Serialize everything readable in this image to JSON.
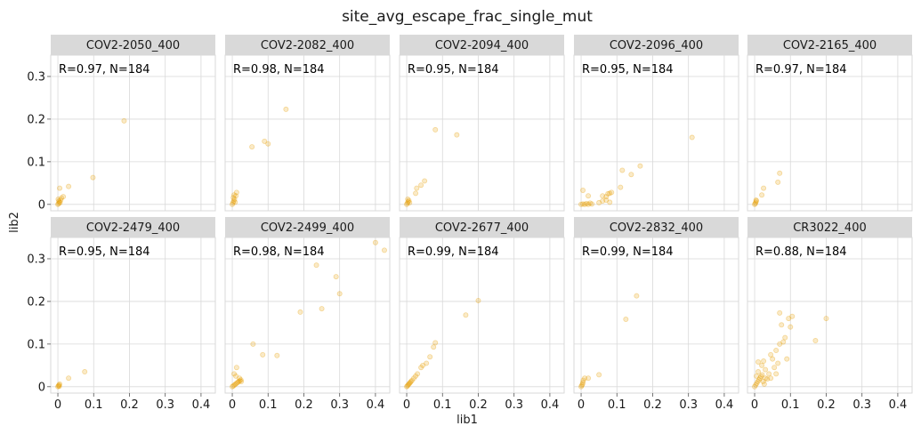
{
  "suptitle": "site_avg_escape_frac_single_mut",
  "chart_data": {
    "type": "scatter",
    "title": "site_avg_escape_frac_single_mut",
    "xlabel": "lib1",
    "ylabel": "lib2",
    "xlim": [
      -0.02,
      0.44
    ],
    "ylim": [
      -0.015,
      0.35
    ],
    "xticks": [
      0,
      0.1,
      0.2,
      0.3,
      0.4
    ],
    "yticks": [
      0,
      0.1,
      0.2,
      0.3
    ],
    "xtick_labels": [
      "0",
      "0.1",
      "0.2",
      "0.3",
      "0.4"
    ],
    "ytick_labels": [
      "0",
      "0.1",
      "0.2",
      "0.3"
    ],
    "grid": true,
    "layout": {
      "rows": 2,
      "cols": 5
    },
    "point_color": "#E69F00",
    "strip_color": "#D9D9D9",
    "grid_color": "#D9D9D9",
    "panels": [
      {
        "name": "COV2-2050_400",
        "annotation": "R=0.97, N=184",
        "points": [
          [
            0,
            0
          ],
          [
            0.002,
            0.002
          ],
          [
            0.004,
            0.005
          ],
          [
            0.003,
            0.008
          ],
          [
            0.001,
            0.012
          ],
          [
            0.006,
            0.004
          ],
          [
            0.008,
            0.01
          ],
          [
            0.01,
            0.015
          ],
          [
            0.015,
            0.018
          ],
          [
            0.005,
            0.038
          ],
          [
            0.03,
            0.042
          ],
          [
            0.098,
            0.063
          ],
          [
            0.185,
            0.196
          ]
        ]
      },
      {
        "name": "COV2-2082_400",
        "annotation": "R=0.98, N=184",
        "points": [
          [
            0,
            0
          ],
          [
            0.002,
            0.004
          ],
          [
            0.004,
            0.008
          ],
          [
            0.006,
            0.012
          ],
          [
            0.008,
            0.005
          ],
          [
            0.003,
            0.016
          ],
          [
            0.01,
            0.02
          ],
          [
            0.012,
            0.028
          ],
          [
            0.005,
            0.022
          ],
          [
            0.055,
            0.135
          ],
          [
            0.09,
            0.148
          ],
          [
            0.1,
            0.142
          ],
          [
            0.15,
            0.223
          ]
        ]
      },
      {
        "name": "COV2-2094_400",
        "annotation": "R=0.95, N=184",
        "points": [
          [
            0,
            0
          ],
          [
            0.002,
            0.003
          ],
          [
            0.004,
            0.006
          ],
          [
            0.006,
            0.009
          ],
          [
            0.003,
            0.012
          ],
          [
            0.008,
            0.004
          ],
          [
            0.025,
            0.026
          ],
          [
            0.028,
            0.038
          ],
          [
            0.04,
            0.045
          ],
          [
            0.05,
            0.055
          ],
          [
            0.08,
            0.175
          ],
          [
            0.14,
            0.163
          ]
        ]
      },
      {
        "name": "COV2-2096_400",
        "annotation": "R=0.95, N=184",
        "points": [
          [
            0,
            0
          ],
          [
            0.005,
            0.001
          ],
          [
            0.01,
            0
          ],
          [
            0.015,
            0.002
          ],
          [
            0.02,
            0
          ],
          [
            0.025,
            0.003
          ],
          [
            0.03,
            0.001
          ],
          [
            0.05,
            0.004
          ],
          [
            0.06,
            0.008
          ],
          [
            0.07,
            0.01
          ],
          [
            0.08,
            0.005
          ],
          [
            0.02,
            0.02
          ],
          [
            0.06,
            0.02
          ],
          [
            0.07,
            0.018
          ],
          [
            0.075,
            0.025
          ],
          [
            0.08,
            0.026
          ],
          [
            0.085,
            0.028
          ],
          [
            0.11,
            0.04
          ],
          [
            0.115,
            0.08
          ],
          [
            0.14,
            0.07
          ],
          [
            0.165,
            0.09
          ],
          [
            0.005,
            0.033
          ],
          [
            0.31,
            0.157
          ]
        ]
      },
      {
        "name": "COV2-2165_400",
        "annotation": "R=0.97, N=184",
        "points": [
          [
            0,
            0
          ],
          [
            0.002,
            0.002
          ],
          [
            0.003,
            0.005
          ],
          [
            0.005,
            0.008
          ],
          [
            0.004,
            0.01
          ],
          [
            0.02,
            0.022
          ],
          [
            0.025,
            0.038
          ],
          [
            0.065,
            0.052
          ],
          [
            0.07,
            0.073
          ]
        ]
      },
      {
        "name": "COV2-2479_400",
        "annotation": "R=0.95, N=184",
        "points": [
          [
            0,
            0
          ],
          [
            0.002,
            0.002
          ],
          [
            0.003,
            0.004
          ],
          [
            0.005,
            0.006
          ],
          [
            0.004,
            0.001
          ],
          [
            0.03,
            0.02
          ],
          [
            0.075,
            0.035
          ]
        ]
      },
      {
        "name": "COV2-2499_400",
        "annotation": "R=0.98, N=184",
        "points": [
          [
            0,
            0
          ],
          [
            0.003,
            0.002
          ],
          [
            0.006,
            0.004
          ],
          [
            0.009,
            0.006
          ],
          [
            0.012,
            0.008
          ],
          [
            0.015,
            0.01
          ],
          [
            0.018,
            0.012
          ],
          [
            0.021,
            0.014
          ],
          [
            0.024,
            0.016
          ],
          [
            0.01,
            0.025
          ],
          [
            0.005,
            0.03
          ],
          [
            0.012,
            0.045
          ],
          [
            0.02,
            0.02
          ],
          [
            0.025,
            0.012
          ],
          [
            0.058,
            0.1
          ],
          [
            0.085,
            0.075
          ],
          [
            0.125,
            0.073
          ],
          [
            0.19,
            0.175
          ],
          [
            0.235,
            0.285
          ],
          [
            0.25,
            0.183
          ],
          [
            0.29,
            0.258
          ],
          [
            0.3,
            0.218
          ],
          [
            0.4,
            0.338
          ],
          [
            0.425,
            0.32
          ]
        ]
      },
      {
        "name": "COV2-2677_400",
        "annotation": "R=0.99, N=184",
        "points": [
          [
            0,
            0
          ],
          [
            0.002,
            0.002
          ],
          [
            0.004,
            0.004
          ],
          [
            0.006,
            0.006
          ],
          [
            0.008,
            0.008
          ],
          [
            0.01,
            0.01
          ],
          [
            0.012,
            0.012
          ],
          [
            0.015,
            0.015
          ],
          [
            0.02,
            0.02
          ],
          [
            0.025,
            0.025
          ],
          [
            0.03,
            0.03
          ],
          [
            0.04,
            0.045
          ],
          [
            0.045,
            0.05
          ],
          [
            0.055,
            0.055
          ],
          [
            0.065,
            0.07
          ],
          [
            0.075,
            0.093
          ],
          [
            0.08,
            0.103
          ],
          [
            0.165,
            0.168
          ],
          [
            0.2,
            0.202
          ]
        ]
      },
      {
        "name": "COV2-2832_400",
        "annotation": "R=0.99, N=184",
        "points": [
          [
            0,
            0
          ],
          [
            0.002,
            0.003
          ],
          [
            0.004,
            0.006
          ],
          [
            0.005,
            0.01
          ],
          [
            0.006,
            0.015
          ],
          [
            0.01,
            0.02
          ],
          [
            0.02,
            0.02
          ],
          [
            0.05,
            0.028
          ],
          [
            0.125,
            0.158
          ],
          [
            0.155,
            0.213
          ]
        ]
      },
      {
        "name": "CR3022_400",
        "annotation": "R=0.88, N=184",
        "points": [
          [
            0,
            0
          ],
          [
            0.003,
            0.004
          ],
          [
            0.006,
            0.008
          ],
          [
            0.009,
            0.012
          ],
          [
            0.012,
            0.016
          ],
          [
            0.015,
            0.02
          ],
          [
            0.018,
            0.024
          ],
          [
            0.021,
            0.028
          ],
          [
            0.024,
            0.012
          ],
          [
            0.027,
            0.006
          ],
          [
            0.03,
            0.02
          ],
          [
            0.005,
            0.025
          ],
          [
            0.01,
            0.035
          ],
          [
            0.02,
            0.05
          ],
          [
            0.025,
            0.06
          ],
          [
            0.03,
            0.04
          ],
          [
            0.035,
            0.018
          ],
          [
            0.04,
            0.03
          ],
          [
            0.045,
            0.075
          ],
          [
            0.05,
            0.065
          ],
          [
            0.055,
            0.045
          ],
          [
            0.06,
            0.085
          ],
          [
            0.065,
            0.055
          ],
          [
            0.07,
            0.1
          ],
          [
            0.07,
            0.173
          ],
          [
            0.075,
            0.145
          ],
          [
            0.08,
            0.105
          ],
          [
            0.085,
            0.115
          ],
          [
            0.09,
            0.065
          ],
          [
            0.095,
            0.16
          ],
          [
            0.1,
            0.14
          ],
          [
            0.105,
            0.165
          ],
          [
            0.06,
            0.03
          ],
          [
            0.045,
            0.02
          ],
          [
            0.01,
            0.058
          ],
          [
            0.17,
            0.108
          ],
          [
            0.2,
            0.16
          ]
        ]
      }
    ]
  }
}
